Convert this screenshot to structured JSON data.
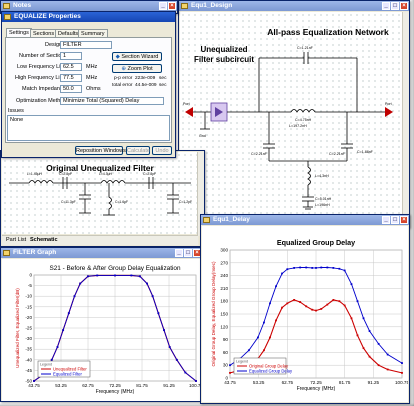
{
  "design_window": {
    "title": "Equ1_Design",
    "network_title": "All-pass Equalization Network",
    "subcircuit_label": "Unequalized Filter subcircuit",
    "port1_label": "Port",
    "port2_label": "Port",
    "gnd_label": "Gnd",
    "lc_labels": [
      "C=1.21nF",
      "C=4.75nH",
      "L=197.2nH",
      "C=2.21nF",
      "C=2.21nF",
      "C=1.88nF",
      "L=4.3nH",
      "C=5.01nH",
      "L=196nH"
    ]
  },
  "notes_window": {
    "title": "Notes",
    "minimize_icon": "minimize-icon",
    "close_icon": "close-icon"
  },
  "equalize_window": {
    "title": "EQUALIZE Properties",
    "tabs": [
      "Settings",
      "Sections",
      "Defaults",
      "Summary"
    ],
    "design_label": "Design",
    "design_value": "FILTER",
    "sections_label": "Number of Sections",
    "sections_value": "1",
    "low_freq_label": "Low Frequency Limit",
    "low_freq_value": "62.5",
    "high_freq_label": "High Frequency Limit",
    "high_freq_value": "77.5",
    "freq_unit": "MHz",
    "impedance_label": "Match Impedance",
    "impedance_value": "50.0",
    "impedance_unit": "Ohms",
    "section_wizard_label": "Section Wizard",
    "zoom_plot_label": "Zoom Plot",
    "pp_error_label": "p-p error",
    "pp_error_value": "223e-009",
    "pp_error_unit": "sec",
    "total_error_label": "total error",
    "total_error_value": "44.5e-009",
    "total_error_unit": "sec",
    "opt_method_label": "Optimization Method",
    "opt_method_value": "Minimize Total (Squared) Delay",
    "issues_label": "Issues",
    "issues_value": "None",
    "reposition_label": "Reposition Windows",
    "calculate_label": "Calculate",
    "undo_label": "Undo"
  },
  "schematic_window": {
    "title": "Original Unequalized Filter",
    "tabs": [
      "Part List",
      "Schematic"
    ],
    "lc_labels": [
      "L=1.45μH",
      "C=2.8pF",
      "L=4.3μH",
      "C=2.8pF",
      "C=11.3pF",
      "C=1.6pF",
      "C=1.2pF"
    ]
  },
  "filter_graph_window": {
    "title": "FILTER Graph",
    "chart_title": "S21 - Before & After Group Delay Equalization",
    "legend_label": "Legend"
  },
  "delay_window": {
    "title": "Equ1_Delay",
    "chart_title": "Equalized Group Delay",
    "legend_label": "Legend"
  },
  "chart_data": [
    {
      "type": "line",
      "title": "S21 - Before & After Group Delay Equalization",
      "xlabel": "Frequency (MHz)",
      "ylabel": "Unequalized Filter, Equalized Filter(dB)",
      "xlim": [
        43.75,
        100.75
      ],
      "ylim": [
        -50,
        0
      ],
      "xticks": [
        "43.75",
        "53.25",
        "62.75",
        "72.25",
        "81.75",
        "91.25",
        "100.75"
      ],
      "yticks": [
        "0",
        "-5",
        "-10",
        "-15",
        "-20",
        "-25",
        "-30",
        "-35",
        "-40",
        "-45",
        "-50"
      ],
      "grid": true,
      "legend_position": "bottom-left",
      "x": [
        43.75,
        47,
        50,
        52,
        54,
        56,
        58,
        60,
        62.75,
        66,
        72.25,
        78,
        81,
        83.5,
        85.5,
        87.5,
        89.5,
        91.5,
        94,
        97,
        100.75
      ],
      "series": [
        {
          "name": "Unequalized Filter",
          "color": "#cc0000",
          "values": [
            -50,
            -47,
            -40,
            -34,
            -26,
            -18,
            -10,
            -4,
            -0.6,
            -0.2,
            -0.2,
            -0.2,
            -0.6,
            -4,
            -10,
            -18,
            -26,
            -34,
            -40,
            -46,
            -50
          ]
        },
        {
          "name": "Equalized Filter",
          "color": "#0000cc",
          "values": [
            -50,
            -47,
            -40,
            -34,
            -26,
            -18,
            -10,
            -4,
            -0.6,
            -0.2,
            -0.2,
            -0.2,
            -0.6,
            -4,
            -10,
            -18,
            -26,
            -34,
            -40,
            -46,
            -50
          ]
        }
      ]
    },
    {
      "type": "line",
      "title": "Equalized Group Delay",
      "xlabel": "Frequency (MHz)",
      "ylabel": "Original Group Delay, Equalized Group Delay(nsec)",
      "xlim": [
        43.75,
        100.75
      ],
      "ylim": [
        0,
        300
      ],
      "xticks": [
        "43.75",
        "53.25",
        "62.75",
        "72.25",
        "81.75",
        "91.25",
        "100.75"
      ],
      "yticks": [
        "0",
        "30",
        "60",
        "90",
        "120",
        "150",
        "180",
        "210",
        "240",
        "270",
        "300"
      ],
      "grid": true,
      "legend_position": "bottom-left",
      "x": [
        43.75,
        47,
        50,
        53,
        55,
        57,
        59,
        61,
        62.75,
        65,
        67,
        69,
        71,
        72.25,
        74,
        76,
        78,
        80,
        81.75,
        84,
        86,
        88,
        90,
        93,
        96,
        100.75
      ],
      "series": [
        {
          "name": "Original Group Delay",
          "color": "#cc0000",
          "values": [
            12,
            18,
            28,
            45,
            65,
            95,
            135,
            165,
            175,
            183,
            178,
            168,
            160,
            158,
            162,
            172,
            183,
            180,
            170,
            140,
            100,
            70,
            50,
            30,
            20,
            12
          ]
        },
        {
          "name": "Equalized Group Delay",
          "color": "#0000cc",
          "values": [
            30,
            45,
            65,
            95,
            130,
            175,
            215,
            245,
            255,
            258,
            259,
            259,
            258,
            258,
            259,
            259,
            258,
            256,
            252,
            220,
            180,
            140,
            110,
            80,
            55,
            35
          ]
        }
      ]
    }
  ]
}
